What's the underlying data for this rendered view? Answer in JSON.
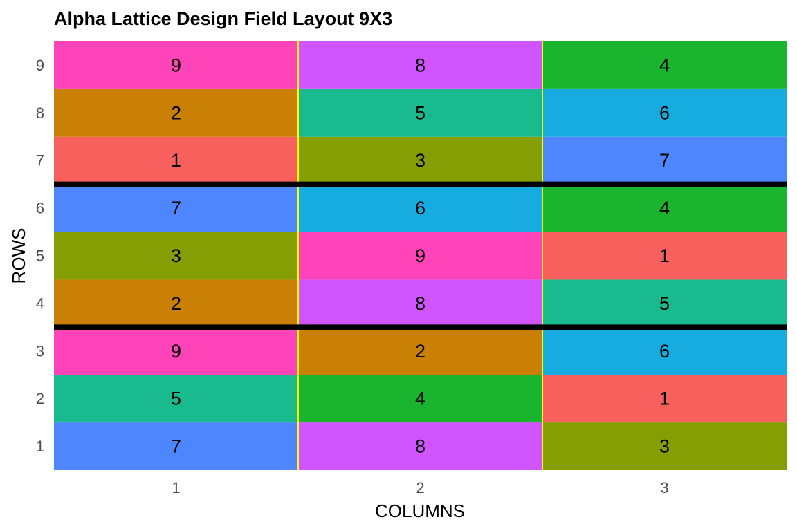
{
  "chart_data": {
    "type": "heatmap",
    "title": "Alpha Lattice Design Field Layout 9X3",
    "xlabel": "COLUMNS",
    "ylabel": "ROWS",
    "columns": [
      1,
      2,
      3
    ],
    "rows": [
      1,
      2,
      3,
      4,
      5,
      6,
      7,
      8,
      9
    ],
    "xlim": [
      0.5,
      3.5
    ],
    "ylim": [
      0.5,
      9.5
    ],
    "cells": [
      {
        "row": 1,
        "col": 1,
        "value": 7
      },
      {
        "row": 1,
        "col": 2,
        "value": 8
      },
      {
        "row": 1,
        "col": 3,
        "value": 3
      },
      {
        "row": 2,
        "col": 1,
        "value": 5
      },
      {
        "row": 2,
        "col": 2,
        "value": 4
      },
      {
        "row": 2,
        "col": 3,
        "value": 1
      },
      {
        "row": 3,
        "col": 1,
        "value": 9
      },
      {
        "row": 3,
        "col": 2,
        "value": 2
      },
      {
        "row": 3,
        "col": 3,
        "value": 6
      },
      {
        "row": 4,
        "col": 1,
        "value": 2
      },
      {
        "row": 4,
        "col": 2,
        "value": 8
      },
      {
        "row": 4,
        "col": 3,
        "value": 5
      },
      {
        "row": 5,
        "col": 1,
        "value": 3
      },
      {
        "row": 5,
        "col": 2,
        "value": 9
      },
      {
        "row": 5,
        "col": 3,
        "value": 1
      },
      {
        "row": 6,
        "col": 1,
        "value": 7
      },
      {
        "row": 6,
        "col": 2,
        "value": 6
      },
      {
        "row": 6,
        "col": 3,
        "value": 4
      },
      {
        "row": 7,
        "col": 1,
        "value": 1
      },
      {
        "row": 7,
        "col": 2,
        "value": 3
      },
      {
        "row": 7,
        "col": 3,
        "value": 7
      },
      {
        "row": 8,
        "col": 1,
        "value": 2
      },
      {
        "row": 8,
        "col": 2,
        "value": 5
      },
      {
        "row": 8,
        "col": 3,
        "value": 6
      },
      {
        "row": 9,
        "col": 1,
        "value": 9
      },
      {
        "row": 9,
        "col": 2,
        "value": 8
      },
      {
        "row": 9,
        "col": 3,
        "value": 4
      }
    ],
    "treatment_colors": {
      "1": "#F8605D",
      "2": "#C98005",
      "3": "#849E03",
      "4": "#1AB42E",
      "5": "#18BA8E",
      "6": "#16ACDF",
      "7": "#4E86FF",
      "8": "#D155FF",
      "9": "#FF43B8"
    },
    "block_boundaries_after_rows": [
      3,
      6
    ],
    "block_line_color": "#000000",
    "column_separator_color": "#FFFF00",
    "grid": false,
    "legend": "none"
  }
}
